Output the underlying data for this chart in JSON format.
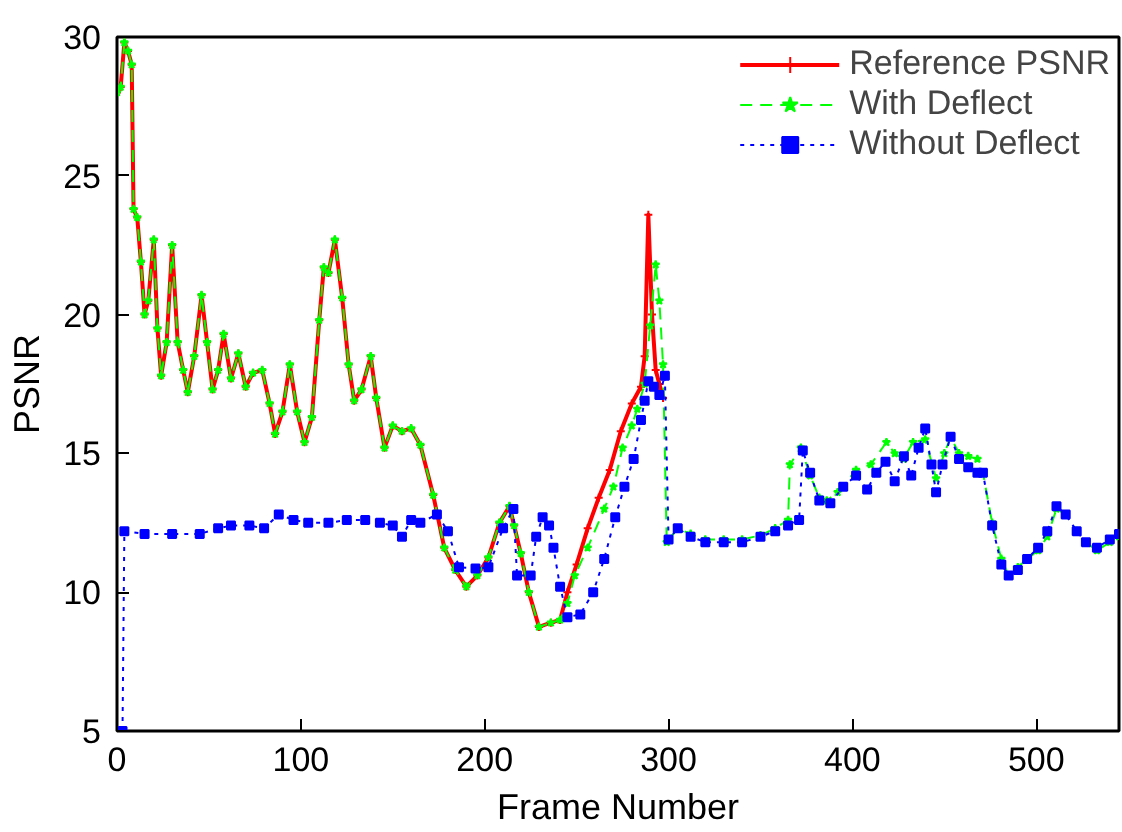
{
  "chart_data": {
    "type": "line",
    "xlabel": "Frame Number",
    "ylabel": "PSNR",
    "xlim": [
      0,
      545
    ],
    "ylim": [
      5,
      30
    ],
    "xticks": [
      0,
      100,
      200,
      300,
      400,
      500
    ],
    "yticks": [
      5,
      10,
      15,
      20,
      25,
      30
    ],
    "grid": false,
    "legend": "top right",
    "series": [
      {
        "name": "Reference PSNR",
        "color": "#ff0000",
        "line_style": "solid",
        "marker": "cross",
        "x": [
          0,
          2,
          4,
          6,
          8,
          9,
          11,
          13,
          15,
          17,
          20,
          22,
          24,
          27,
          30,
          33,
          36,
          38.5,
          42,
          46,
          49,
          52,
          55,
          58,
          62,
          66,
          70,
          74,
          79,
          83,
          86,
          90,
          94,
          98,
          102,
          106,
          110,
          112.5,
          115,
          118.5,
          122.5,
          126,
          129,
          133,
          138,
          141,
          145.5,
          150,
          155,
          160,
          165,
          172,
          178,
          184,
          190,
          196,
          202,
          208,
          213.5,
          216,
          219.6,
          224,
          229.5,
          236,
          241,
          245,
          250,
          256,
          262,
          268,
          274,
          280,
          285,
          287,
          289,
          291,
          293,
          295,
          297
        ],
        "values": [
          28.0,
          28.2,
          29.8,
          29.5,
          29.0,
          23.8,
          23.5,
          21.9,
          20.0,
          20.5,
          22.7,
          19.5,
          17.8,
          19.0,
          22.5,
          19.0,
          18.0,
          17.2,
          18.5,
          20.7,
          19.0,
          17.3,
          18.0,
          19.3,
          17.7,
          18.6,
          17.4,
          17.9,
          18.0,
          16.8,
          15.7,
          16.5,
          18.2,
          16.5,
          15.4,
          16.3,
          19.8,
          21.7,
          21.5,
          22.7,
          20.6,
          18.2,
          16.9,
          17.3,
          18.5,
          17.0,
          15.2,
          16.0,
          15.8,
          15.9,
          15.3,
          13.5,
          11.6,
          10.8,
          10.2,
          10.6,
          11.25,
          12.5,
          13.1,
          12.4,
          11.4,
          10.0,
          8.75,
          8.9,
          9.0,
          10.0,
          11.0,
          12.3,
          13.4,
          14.4,
          15.8,
          16.8,
          17.4,
          18.5,
          23.6,
          20.0,
          18.0,
          17.5,
          17.0
        ]
      },
      {
        "name": "With Deflect",
        "color": "#00ff00",
        "line_style": "dashed",
        "marker": "star",
        "x": [
          0,
          2,
          4,
          6,
          8,
          9,
          11,
          13,
          15,
          17,
          20,
          22,
          24,
          27,
          30,
          33,
          36,
          38.5,
          42,
          46,
          49,
          52,
          55,
          58,
          62,
          66,
          70,
          74,
          79,
          83,
          86,
          90,
          94,
          98,
          102,
          106,
          110,
          112.5,
          115,
          118.5,
          122.5,
          126,
          129,
          133,
          138,
          141,
          145.5,
          150,
          155,
          160,
          165,
          172,
          178,
          184,
          190,
          196,
          202,
          208,
          213.5,
          216,
          219.6,
          224,
          229.5,
          236,
          241,
          245,
          249,
          256,
          265,
          270,
          275,
          280,
          283,
          287,
          290,
          293,
          295,
          297,
          299,
          305,
          312,
          320,
          330,
          340,
          350,
          358,
          365,
          366,
          372,
          377,
          382,
          386,
          392,
          402,
          410,
          418.5,
          423,
          427.7,
          433,
          439.6,
          445.5,
          450,
          453.4,
          458,
          463,
          468,
          471,
          476,
          481,
          485,
          490,
          495,
          501,
          506,
          511,
          516,
          522,
          527,
          533,
          540,
          545
        ],
        "values": [
          28.0,
          28.2,
          29.8,
          29.5,
          29.0,
          23.8,
          23.5,
          21.9,
          20.0,
          20.5,
          22.7,
          19.5,
          17.8,
          19.0,
          22.5,
          19.0,
          18.0,
          17.2,
          18.5,
          20.7,
          19.0,
          17.3,
          18.0,
          19.3,
          17.7,
          18.6,
          17.4,
          17.9,
          18.0,
          16.8,
          15.7,
          16.5,
          18.2,
          16.5,
          15.4,
          16.3,
          19.8,
          21.7,
          21.5,
          22.7,
          20.6,
          18.2,
          16.9,
          17.3,
          18.5,
          17.0,
          15.2,
          16.0,
          15.8,
          15.9,
          15.3,
          13.5,
          11.6,
          10.8,
          10.2,
          10.6,
          11.25,
          12.5,
          13.1,
          12.4,
          11.4,
          10.0,
          8.75,
          8.9,
          9.0,
          9.6,
          10.6,
          11.6,
          13.0,
          13.8,
          15.2,
          16.0,
          16.6,
          17.5,
          19.6,
          21.8,
          20.5,
          18.2,
          11.8,
          12.3,
          12.1,
          11.9,
          11.9,
          11.9,
          12.05,
          12.3,
          12.6,
          14.6,
          15.2,
          14.2,
          13.4,
          13.3,
          13.6,
          14.4,
          14.6,
          15.4,
          15.0,
          14.8,
          15.4,
          15.5,
          14.1,
          15.0,
          15.6,
          15.0,
          14.9,
          14.8,
          14.3,
          12.5,
          11.2,
          10.6,
          10.9,
          11.2,
          11.5,
          12.0,
          13.0,
          12.8,
          12.2,
          11.8,
          11.5,
          11.8,
          12.0
        ]
      },
      {
        "name": "Without Deflect",
        "color": "#0000ff",
        "line_style": "dotted",
        "marker": "square",
        "x": [
          3,
          4,
          15,
          30,
          45,
          55,
          62,
          72,
          80,
          88,
          96,
          104,
          115,
          125,
          135,
          143,
          150,
          155,
          160,
          165,
          174,
          180,
          186,
          195,
          202,
          210,
          215.6,
          217.6,
          225,
          228,
          231.5,
          235,
          237.4,
          241,
          245,
          252,
          259,
          265,
          271,
          276,
          281,
          285,
          287,
          289,
          292,
          295,
          298,
          300,
          305,
          312,
          320,
          330,
          340,
          350,
          358,
          365,
          371,
          373,
          377,
          382,
          388,
          395,
          402,
          408,
          413,
          418,
          423,
          428,
          432,
          436,
          439.6,
          443,
          445.5,
          449,
          453.4,
          458,
          463,
          468,
          471,
          476,
          481,
          485,
          490,
          495,
          501,
          506,
          511,
          516,
          522,
          527,
          533,
          540,
          545
        ],
        "values": [
          5.0,
          12.2,
          12.1,
          12.1,
          12.1,
          12.3,
          12.4,
          12.4,
          12.3,
          12.8,
          12.6,
          12.5,
          12.5,
          12.6,
          12.6,
          12.5,
          12.4,
          12.0,
          12.6,
          12.5,
          12.8,
          12.2,
          10.9,
          10.85,
          10.9,
          12.3,
          13.0,
          10.6,
          10.6,
          12.0,
          12.7,
          12.4,
          11.6,
          10.2,
          9.1,
          9.2,
          10.0,
          11.2,
          12.7,
          13.8,
          14.8,
          16.2,
          16.9,
          17.6,
          17.4,
          17.1,
          17.8,
          11.9,
          12.3,
          12.0,
          11.8,
          11.8,
          11.8,
          12.0,
          12.2,
          12.4,
          12.6,
          15.1,
          14.3,
          13.3,
          13.2,
          13.8,
          14.2,
          13.7,
          14.3,
          14.7,
          14.0,
          14.9,
          14.2,
          15.2,
          15.9,
          14.6,
          13.6,
          14.6,
          15.6,
          14.8,
          14.5,
          14.3,
          14.3,
          12.4,
          11.0,
          10.6,
          10.8,
          11.2,
          11.6,
          12.2,
          13.1,
          12.8,
          12.2,
          11.8,
          11.6,
          11.9,
          12.1
        ]
      }
    ]
  }
}
